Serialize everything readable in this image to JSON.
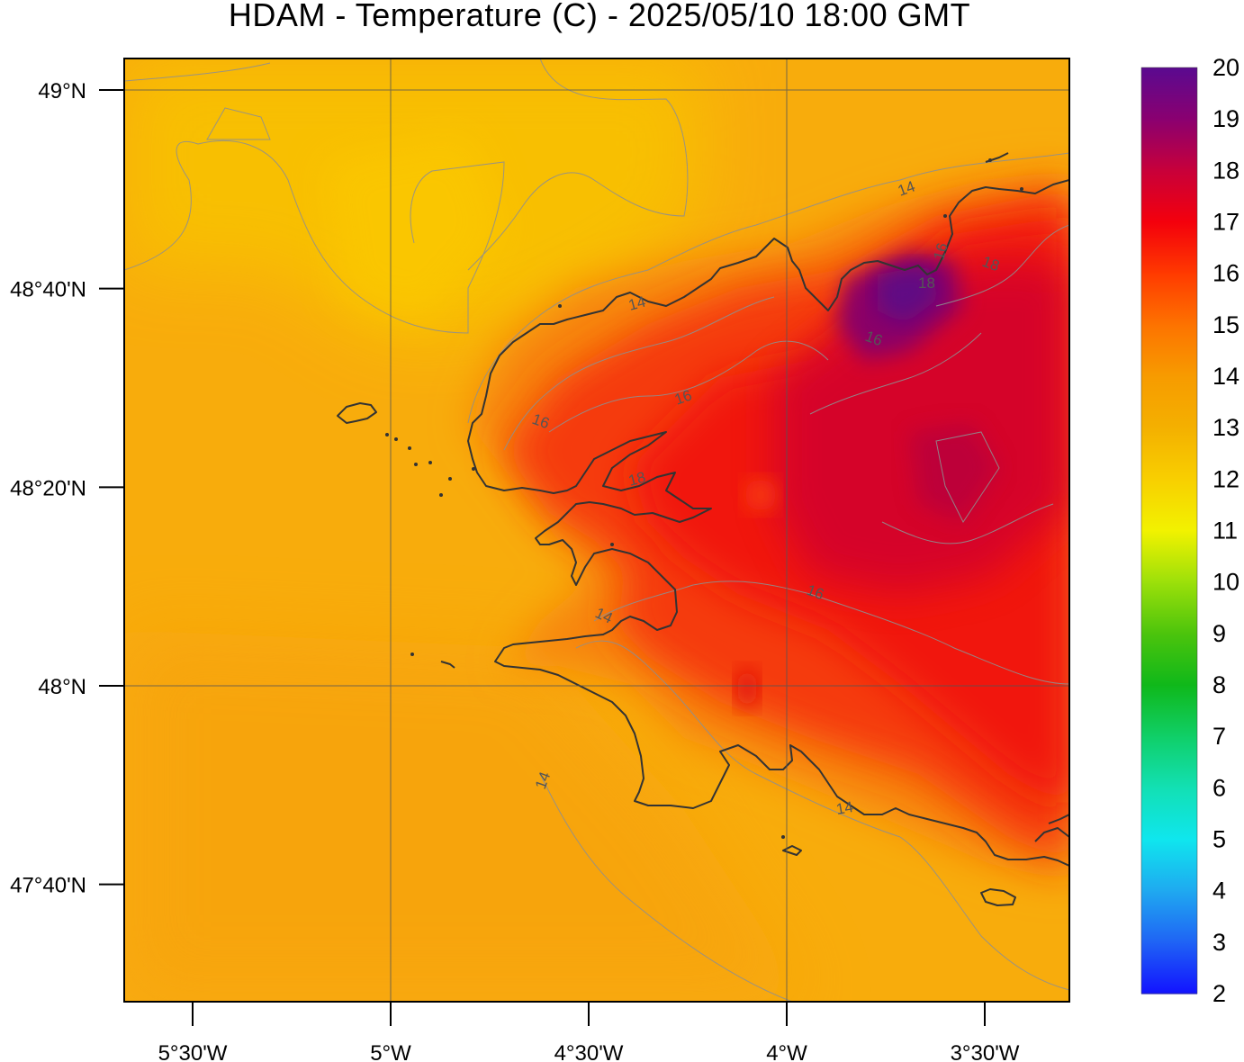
{
  "title": "HDAM - Temperature (C)  -  2025/05/10  18:00 GMT",
  "lat_labels": [
    {
      "text": "49°N",
      "value": 49.0
    },
    {
      "text": "48°40'N",
      "value": 48.6667
    },
    {
      "text": "48°20'N",
      "value": 48.3333
    },
    {
      "text": "48°N",
      "value": 48.0
    },
    {
      "text": "47°40'N",
      "value": 47.6667
    }
  ],
  "lon_labels": [
    {
      "text": "5°30'W",
      "value": -5.5
    },
    {
      "text": "5°W",
      "value": -5.0
    },
    {
      "text": "4°30'W",
      "value": -4.5
    },
    {
      "text": "4°W",
      "value": -4.0
    },
    {
      "text": "3°30'W",
      "value": -3.5
    }
  ],
  "colorbar": {
    "labels": [
      "2",
      "3",
      "4",
      "5",
      "6",
      "7",
      "8",
      "9",
      "10",
      "11",
      "12",
      "13",
      "14",
      "15",
      "16",
      "17",
      "18",
      "19",
      "20"
    ],
    "min": 2,
    "max": 20,
    "colors": [
      "#1212ff",
      "#1f63f5",
      "#1fa9f0",
      "#0fe6ee",
      "#12e0b4",
      "#10cf68",
      "#0fb81a",
      "#4cc40c",
      "#9ce00a",
      "#f2f200",
      "#f8cf00",
      "#f4b000",
      "#f79b00",
      "#fd7300",
      "#ff3a00",
      "#f4000c",
      "#c8003a",
      "#8a0070",
      "#5a0a90"
    ]
  },
  "contour_labels": [
    "14",
    "14",
    "16",
    "16",
    "18",
    "16",
    "16",
    "14",
    "14",
    "14",
    "16",
    "18",
    "18"
  ],
  "map": {
    "sea_color": "#f6ad0c",
    "land_color": "#e3201a"
  }
}
